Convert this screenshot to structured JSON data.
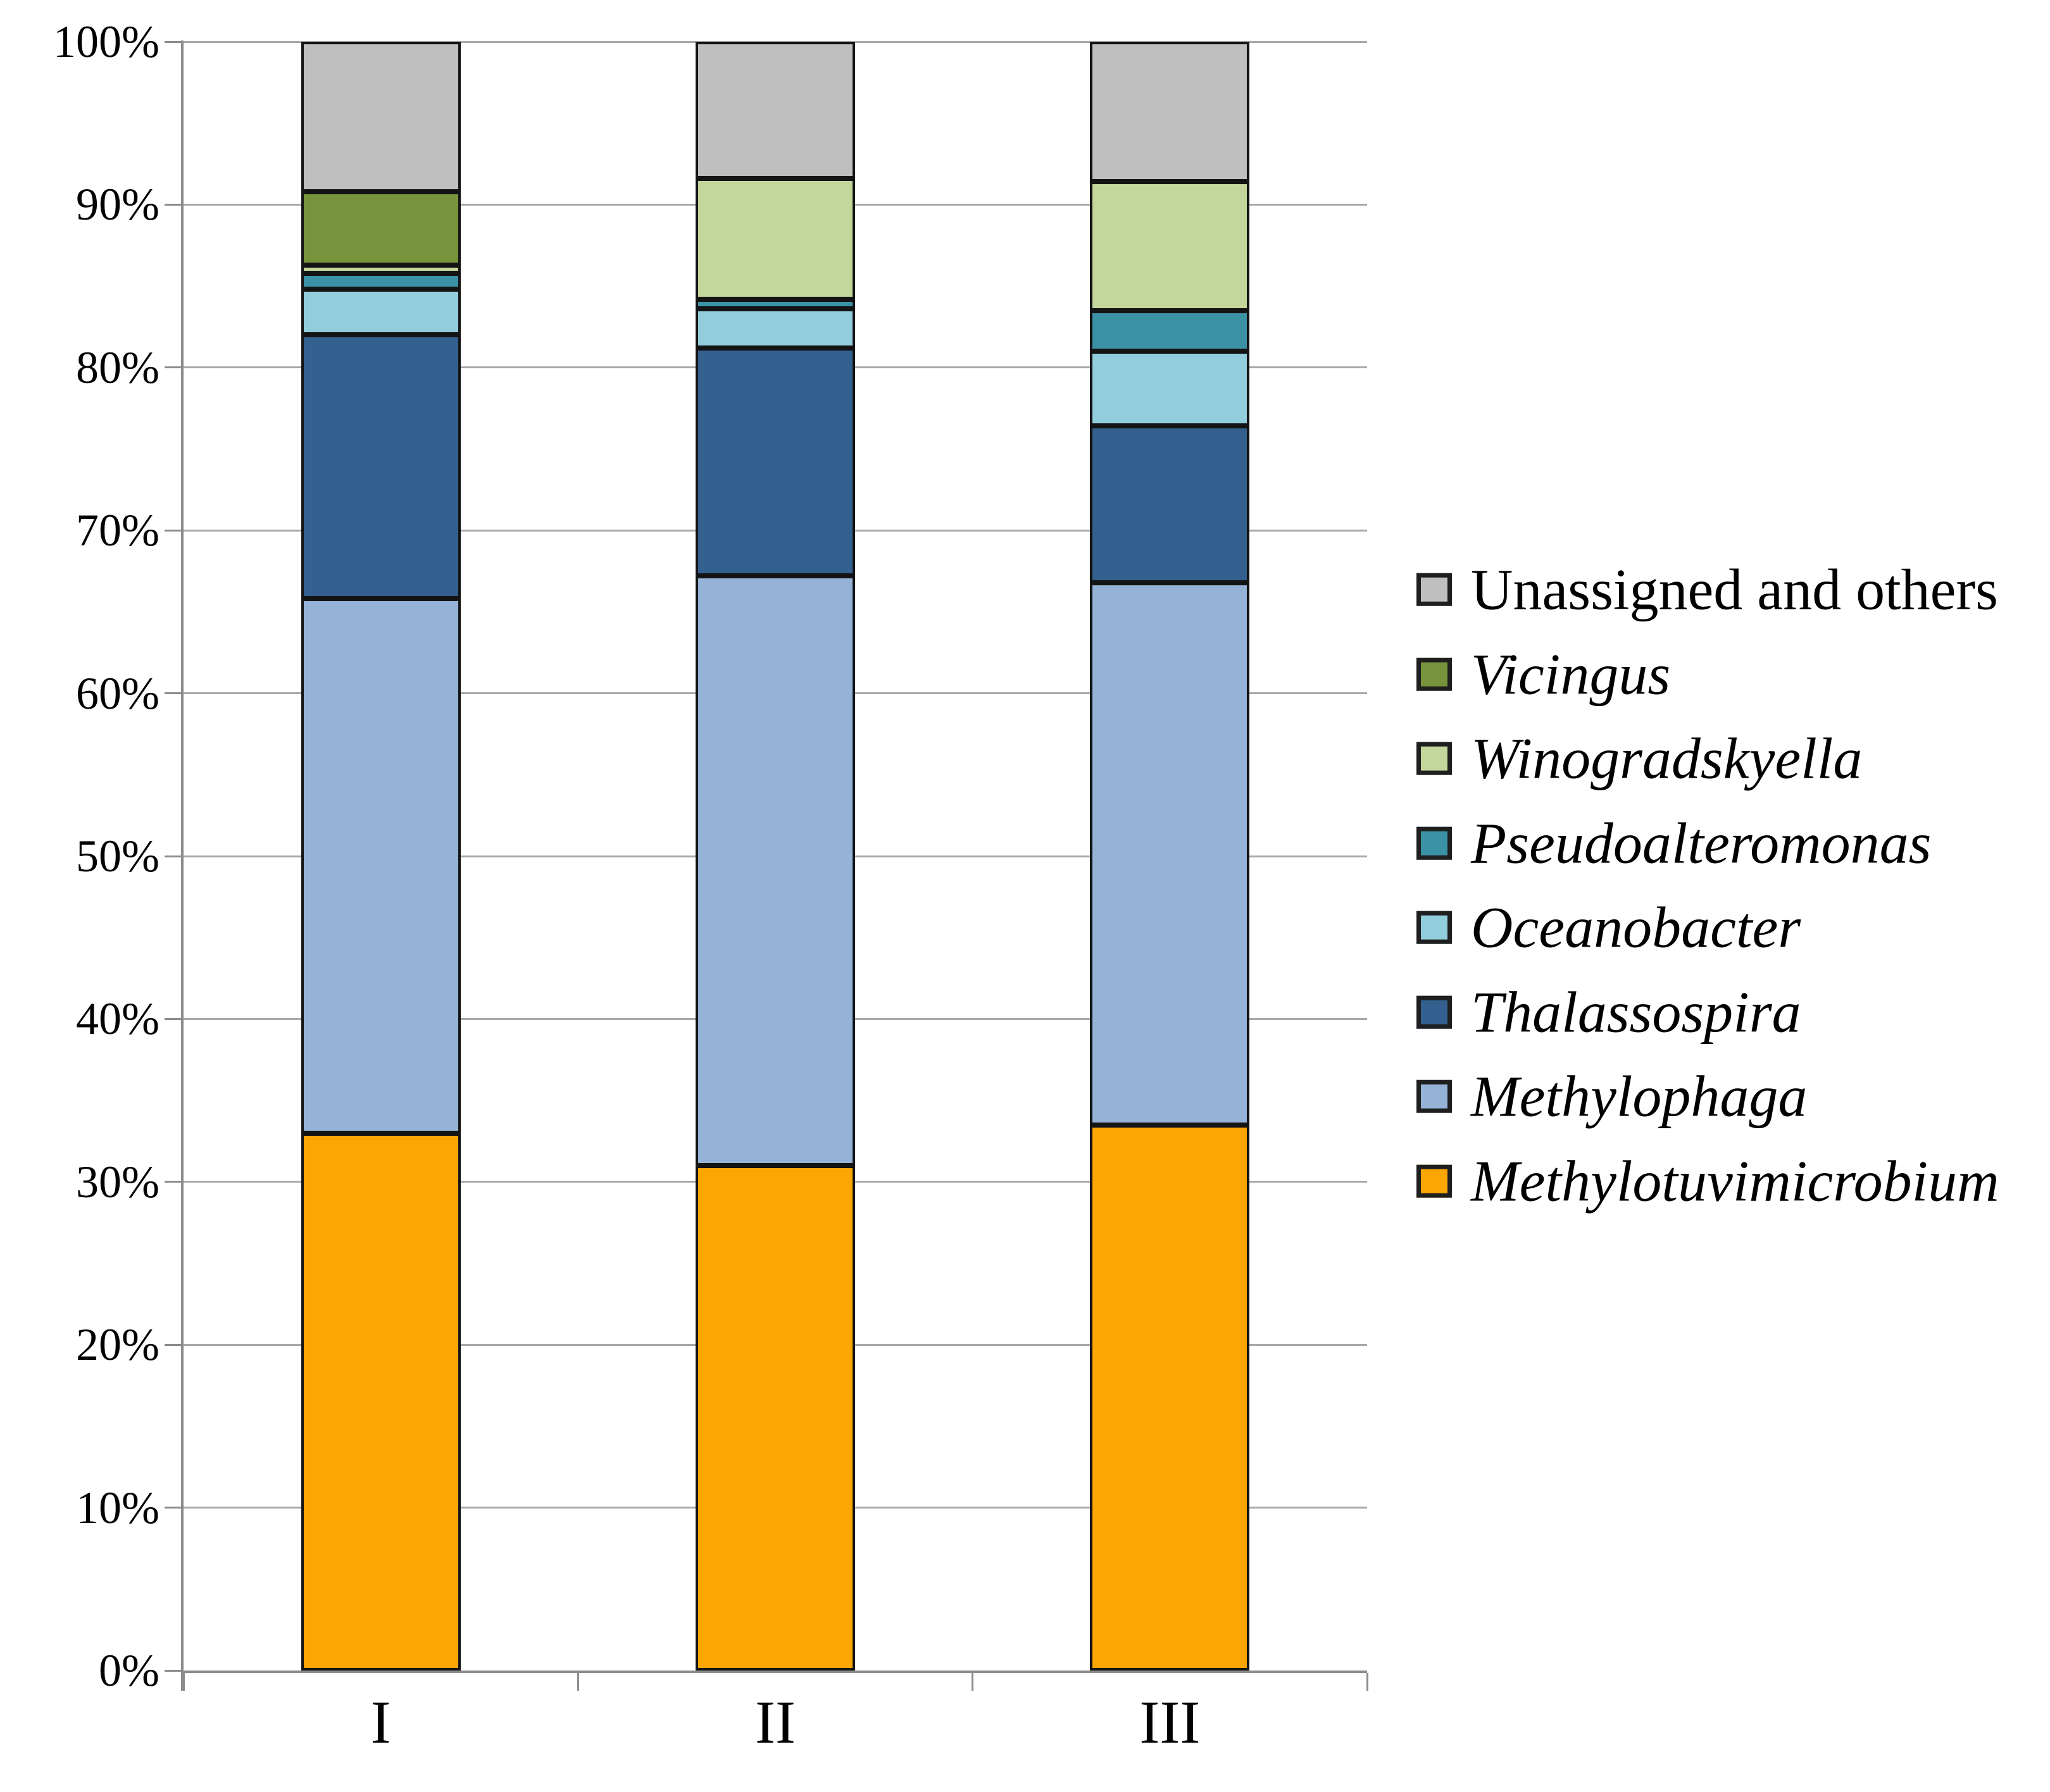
{
  "chart_data": {
    "type": "bar",
    "stacked": true,
    "percent_stacked": true,
    "title": "",
    "xlabel": "",
    "ylabel": "",
    "categories": [
      "I",
      "II",
      "III"
    ],
    "series_bottom_to_top": [
      {
        "name": "Methylotuvimicrobium",
        "color": "#FCA603",
        "italic": true,
        "values": [
          33.0,
          31.0,
          33.5
        ]
      },
      {
        "name": "Methylophaga",
        "color": "#95B3D7",
        "italic": true,
        "values": [
          32.8,
          36.2,
          33.3
        ]
      },
      {
        "name": "Thalassospira",
        "color": "#33608F",
        "italic": true,
        "values": [
          16.2,
          14.0,
          9.6
        ]
      },
      {
        "name": "Oceanobacter",
        "color": "#92CDDC",
        "italic": true,
        "values": [
          2.8,
          2.4,
          4.6
        ]
      },
      {
        "name": "Pseudoalteromonas",
        "color": "#3B92A5",
        "italic": true,
        "values": [
          1.0,
          0.6,
          2.5
        ]
      },
      {
        "name": "Winogradskyella",
        "color": "#C3D69B",
        "italic": true,
        "values": [
          0.5,
          7.4,
          7.9
        ]
      },
      {
        "name": "Vicingus",
        "color": "#77933C",
        "italic": true,
        "values": [
          4.5,
          0.0,
          0.0
        ]
      },
      {
        "name": "Unassigned and others",
        "color": "#BFBFBF",
        "italic": false,
        "values": [
          9.2,
          8.4,
          8.6
        ]
      }
    ],
    "legend_order_top_to_bottom": [
      "Unassigned and others",
      "Vicingus",
      "Winogradskyella",
      "Pseudoalteromonas",
      "Oceanobacter",
      "Thalassospira",
      "Methylophaga",
      "Methylotuvimicrobium"
    ],
    "legend_position": "right",
    "y_ticks": [
      "0%",
      "10%",
      "20%",
      "30%",
      "40%",
      "50%",
      "60%",
      "70%",
      "80%",
      "90%",
      "100%"
    ],
    "ylim": [
      0,
      100
    ],
    "grid": true
  },
  "styles": {
    "background": "#FFFFFF",
    "grid_color": "#A8A8A8",
    "axis_color": "#8C8C8C",
    "segment_border_color": "#141414",
    "swatch_border_color": "#1F1F1F",
    "text_color": "#000000"
  }
}
